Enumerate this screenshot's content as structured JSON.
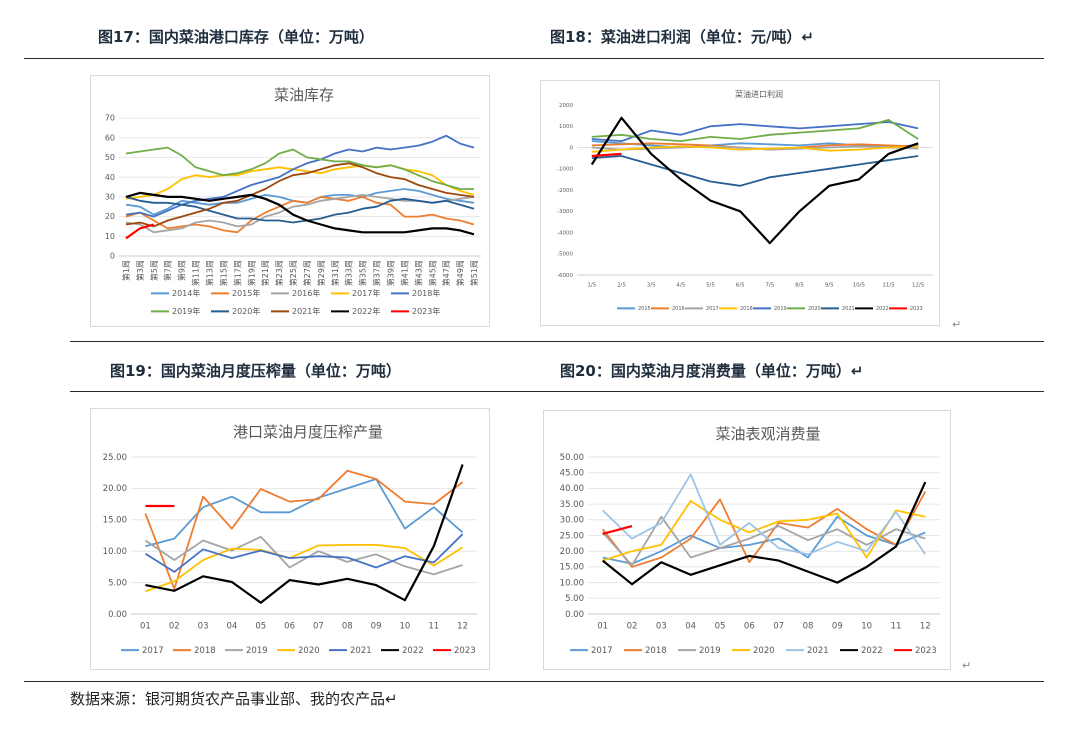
{
  "figures": {
    "fig17_title": "图17：国内菜油港口库存（单位：万吨）",
    "fig18_title": "图18：菜油进口利润（单位：元/吨）↵",
    "fig19_title": "图19：国内菜油月度压榨量（单位：万吨）",
    "fig20_title": "图20：国内菜油月度消费量（单位：万吨）↵"
  },
  "return_mark": "↵",
  "source": "数据来源：银河期货农产品事业部、我的农产品↵",
  "chart_data": [
    {
      "id": "inventory",
      "type": "line",
      "title": "菜油库存",
      "ylim": [
        0,
        70
      ],
      "yticks": [
        0,
        10,
        20,
        30,
        40,
        50,
        60,
        70
      ],
      "xticks": [
        "第1周",
        "第3周",
        "第5周",
        "第7周",
        "第9周",
        "第11周",
        "第13周",
        "第15周",
        "第17周",
        "第19周",
        "第21周",
        "第23周",
        "第25周",
        "第27周",
        "第29周",
        "第31周",
        "第33周",
        "第35周",
        "第37周",
        "第39周",
        "第41周",
        "第43周",
        "第45周",
        "第47周",
        "第49周",
        "第51周"
      ],
      "series": [
        {
          "name": "2014年",
          "color": "#5b9bd5",
          "values": [
            26,
            25,
            21,
            24,
            28,
            27,
            26,
            27,
            27,
            29,
            31,
            30,
            28,
            27,
            30,
            31,
            31,
            30,
            32,
            33,
            34,
            33,
            31,
            29,
            28,
            27
          ]
        },
        {
          "name": "2015年",
          "color": "#ed7d31",
          "values": [
            20,
            22,
            18,
            14,
            15,
            16,
            15,
            13,
            12,
            18,
            22,
            25,
            28,
            27,
            30,
            29,
            28,
            30,
            27,
            26,
            20,
            20,
            21,
            19,
            18,
            16
          ]
        },
        {
          "name": "2016年",
          "color": "#a5a5a5",
          "values": [
            17,
            16,
            12,
            13,
            14,
            17,
            18,
            17,
            15,
            16,
            20,
            22,
            25,
            26,
            28,
            29,
            30,
            31,
            30,
            29,
            28,
            28,
            27,
            28,
            29,
            30
          ]
        },
        {
          "name": "2017年",
          "color": "#ffc000",
          "values": [
            29,
            30,
            31,
            34,
            39,
            41,
            40,
            41,
            41,
            43,
            44,
            45,
            44,
            43,
            42,
            44,
            45,
            46,
            45,
            46,
            44,
            43,
            41,
            36,
            33,
            31
          ]
        },
        {
          "name": "2018年",
          "color": "#4472c4",
          "values": [
            21,
            22,
            20,
            23,
            26,
            28,
            29,
            30,
            33,
            36,
            38,
            40,
            44,
            47,
            49,
            52,
            54,
            53,
            55,
            54,
            55,
            56,
            58,
            61,
            57,
            55
          ]
        },
        {
          "name": "2019年",
          "color": "#70ad47",
          "values": [
            52,
            53,
            54,
            55,
            51,
            45,
            43,
            41,
            42,
            44,
            47,
            52,
            54,
            50,
            49,
            48,
            48,
            46,
            45,
            46,
            44,
            41,
            38,
            36,
            34,
            34
          ]
        },
        {
          "name": "2020年",
          "color": "#255e91",
          "values": [
            30,
            28,
            27,
            27,
            26,
            25,
            23,
            21,
            19,
            19,
            18,
            18,
            17,
            18,
            19,
            21,
            22,
            24,
            25,
            28,
            29,
            28,
            27,
            28,
            26,
            24
          ]
        },
        {
          "name": "2021年",
          "color": "#9e480e",
          "values": [
            16,
            17,
            15,
            18,
            20,
            22,
            24,
            27,
            28,
            31,
            34,
            38,
            41,
            42,
            44,
            46,
            47,
            45,
            42,
            40,
            39,
            36,
            34,
            32,
            31,
            30
          ]
        },
        {
          "name": "2022年",
          "color": "#000000",
          "values": [
            30,
            32,
            31,
            30,
            30,
            29,
            28,
            29,
            30,
            31,
            29,
            26,
            21,
            18,
            16,
            14,
            13,
            12,
            12,
            12,
            12,
            13,
            14,
            14,
            13,
            11
          ]
        },
        {
          "name": "2023年",
          "color": "#ff0000",
          "values": [
            9,
            14,
            16,
            null,
            null,
            null,
            null,
            null,
            null,
            null,
            null,
            null,
            null,
            null,
            null,
            null,
            null,
            null,
            null,
            null,
            null,
            null,
            null,
            null,
            null,
            null
          ]
        }
      ]
    },
    {
      "id": "profit",
      "type": "line",
      "title": "菜油进口利润",
      "ylim": [
        -6000,
        2000
      ],
      "yticks": [
        -6000,
        -5000,
        -4000,
        -3000,
        -2000,
        -1000,
        0,
        1000,
        2000
      ],
      "xticks": [
        "1/5",
        "2/5",
        "3/5",
        "4/5",
        "5/5",
        "6/5",
        "7/5",
        "8/5",
        "9/5",
        "10/5",
        "11/5",
        "12/5"
      ],
      "series": [
        {
          "name": "2015",
          "color": "#5b9bd5",
          "values": [
            300,
            200,
            100,
            0,
            100,
            200,
            150,
            100,
            200,
            100,
            50,
            100
          ]
        },
        {
          "name": "2016",
          "color": "#ed7d31",
          "values": [
            100,
            150,
            200,
            150,
            100,
            0,
            -100,
            0,
            100,
            150,
            100,
            50
          ]
        },
        {
          "name": "2017",
          "color": "#a5a5a5",
          "values": [
            0,
            -100,
            -50,
            0,
            50,
            0,
            -100,
            -50,
            0,
            50,
            0,
            -50
          ]
        },
        {
          "name": "2018",
          "color": "#ffc000",
          "values": [
            -200,
            -100,
            0,
            50,
            0,
            -100,
            -50,
            0,
            -150,
            -100,
            0,
            50
          ]
        },
        {
          "name": "2019",
          "color": "#4472c4",
          "values": [
            400,
            300,
            800,
            600,
            1000,
            1100,
            1000,
            900,
            1000,
            1100,
            1200,
            900
          ]
        },
        {
          "name": "2020",
          "color": "#70ad47",
          "values": [
            500,
            600,
            400,
            300,
            500,
            400,
            600,
            700,
            800,
            900,
            1300,
            400
          ]
        },
        {
          "name": "2021",
          "color": "#255e91",
          "values": [
            -500,
            -400,
            -800,
            -1200,
            -1600,
            -1800,
            -1400,
            -1200,
            -1000,
            -800,
            -600,
            -400
          ]
        },
        {
          "name": "2022",
          "color": "#000000",
          "values": [
            -800,
            1400,
            -300,
            -1500,
            -2500,
            -3000,
            -4500,
            -3000,
            -1800,
            -1500,
            -300,
            200
          ]
        },
        {
          "name": "2023",
          "color": "#ff0000",
          "values": [
            -400,
            -300,
            null,
            null,
            null,
            null,
            null,
            null,
            null,
            null,
            null,
            null
          ]
        }
      ]
    },
    {
      "id": "crush",
      "type": "line",
      "title": "港口菜油月度压榨产量",
      "ylim": [
        0,
        25
      ],
      "yticks": [
        "0.00",
        "5.00",
        "10.00",
        "15.00",
        "20.00",
        "25.00"
      ],
      "xticks": [
        "01",
        "02",
        "03",
        "04",
        "05",
        "06",
        "07",
        "08",
        "09",
        "10",
        "11",
        "12"
      ],
      "series": [
        {
          "name": "2017",
          "color": "#5b9bd5",
          "values": [
            10.8,
            12,
            17,
            18.7,
            16.2,
            16.2,
            18.5,
            20,
            21.5,
            13.6,
            17,
            13
          ]
        },
        {
          "name": "2018",
          "color": "#ed7d31",
          "values": [
            16,
            4,
            18.7,
            13.6,
            19.9,
            17.9,
            18.3,
            22.8,
            21.5,
            17.9,
            17.5,
            21
          ]
        },
        {
          "name": "2019",
          "color": "#a5a5a5",
          "values": [
            11.7,
            8.6,
            11.7,
            10.1,
            12.3,
            7.4,
            10,
            8.3,
            9.5,
            7.6,
            6.3,
            7.8
          ]
        },
        {
          "name": "2020",
          "color": "#ffc000",
          "values": [
            3.6,
            5.2,
            8.6,
            10.4,
            10.2,
            8.9,
            10.9,
            11,
            11,
            10.5,
            7.7,
            10.6
          ]
        },
        {
          "name": "2021",
          "color": "#4472c4",
          "values": [
            9.6,
            6.7,
            10.3,
            8.9,
            10.1,
            8.9,
            9.2,
            9,
            7.4,
            9.2,
            8.2,
            12.7
          ]
        },
        {
          "name": "2022",
          "color": "#000000",
          "values": [
            4.6,
            3.7,
            6,
            5.1,
            1.8,
            5.4,
            4.7,
            5.6,
            4.6,
            2.2,
            10.8,
            23.8
          ]
        },
        {
          "name": "2023",
          "color": "#ff0000",
          "values": [
            17.2,
            17.2,
            null,
            null,
            null,
            null,
            null,
            null,
            null,
            null,
            null,
            null
          ]
        }
      ]
    },
    {
      "id": "consumption",
      "type": "line",
      "title": "菜油表观消费量",
      "ylim": [
        0,
        50
      ],
      "yticks": [
        "0.00",
        "5.00",
        "10.00",
        "15.00",
        "20.00",
        "25.00",
        "30.00",
        "35.00",
        "40.00",
        "45.00",
        "50.00"
      ],
      "xticks": [
        "01",
        "02",
        "03",
        "04",
        "05",
        "06",
        "07",
        "08",
        "09",
        "10",
        "11",
        "12"
      ],
      "series": [
        {
          "name": "2017",
          "color": "#5b9bd5",
          "values": [
            18,
            16,
            20,
            25,
            21,
            22,
            24,
            18,
            31,
            25,
            22,
            26
          ]
        },
        {
          "name": "2018",
          "color": "#ed7d31",
          "values": [
            27,
            15,
            18,
            24,
            36.5,
            16.5,
            29,
            27.5,
            33.5,
            27,
            22,
            39
          ]
        },
        {
          "name": "2019",
          "color": "#a5a5a5",
          "values": [
            26,
            15.5,
            31,
            18,
            21,
            24,
            28,
            23.5,
            27,
            22,
            27,
            24
          ]
        },
        {
          "name": "2020",
          "color": "#ffc000",
          "values": [
            17,
            20,
            22,
            36,
            30,
            26,
            29.5,
            30,
            32,
            18,
            33,
            31
          ]
        },
        {
          "name": "2021",
          "color": "#9dc3e6",
          "values": [
            33,
            24,
            29,
            44.5,
            22,
            29,
            21,
            19,
            23,
            20,
            32.5,
            19
          ]
        },
        {
          "name": "2022",
          "color": "#000000",
          "values": [
            17,
            9.5,
            16.5,
            12.5,
            15.5,
            18.5,
            17,
            13.5,
            10,
            15,
            21.5,
            42
          ]
        },
        {
          "name": "2023",
          "color": "#ff0000",
          "values": [
            25.5,
            28,
            null,
            null,
            null,
            null,
            null,
            null,
            null,
            null,
            null,
            null
          ]
        }
      ]
    }
  ]
}
